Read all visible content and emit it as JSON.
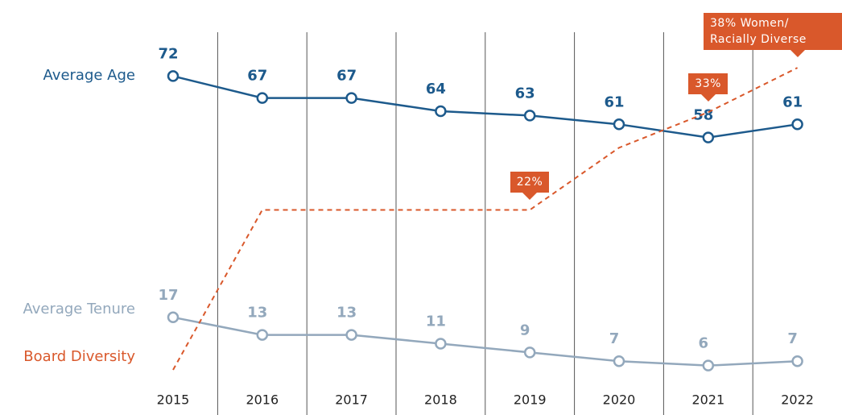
{
  "chart_data": {
    "type": "line",
    "categories": [
      "2015",
      "2016",
      "2017",
      "2018",
      "2019",
      "2020",
      "2021",
      "2022"
    ],
    "series": [
      {
        "name": "Average Age",
        "color": "#1d5a8c",
        "values": [
          72,
          67,
          67,
          64,
          63,
          61,
          58,
          61
        ]
      },
      {
        "name": "Average Tenure",
        "color": "#93a8bc",
        "values": [
          17,
          13,
          13,
          11,
          9,
          7,
          6,
          7
        ]
      },
      {
        "name": "Board Diversity",
        "color": "#d9582b",
        "axis": "y2",
        "dashed": true,
        "values": [
          4,
          22,
          22,
          22,
          22,
          29,
          33,
          38
        ],
        "value_labels": [
          null,
          null,
          null,
          null,
          "22%",
          null,
          "33%",
          "38% Women/ Racially Diverse"
        ]
      }
    ],
    "ylim": [
      3,
      82
    ],
    "y2lim": [
      3,
      42
    ],
    "grid": true
  }
}
